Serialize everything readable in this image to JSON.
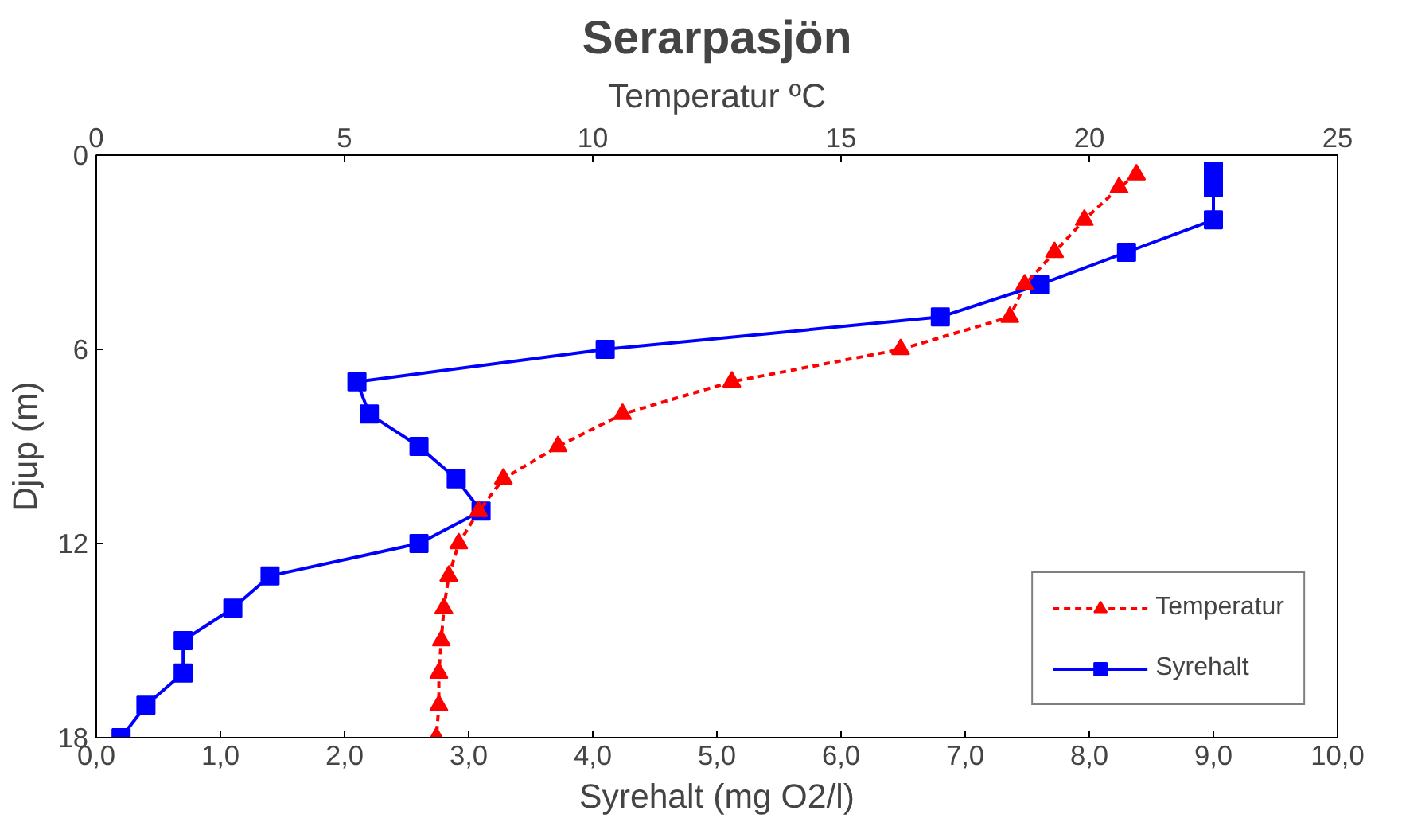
{
  "chart_data": {
    "type": "line",
    "title": "Serarpasjön",
    "xlabel": "Syrehalt (mg O2/l)",
    "x2label": "Temperatur ºC",
    "ylabel": "Djup (m)",
    "xlim": [
      0,
      10
    ],
    "xticks": [
      {
        "value": 0,
        "label": "0,0"
      },
      {
        "value": 1,
        "label": "1,0"
      },
      {
        "value": 2,
        "label": "2,0"
      },
      {
        "value": 3,
        "label": "3,0"
      },
      {
        "value": 4,
        "label": "4,0"
      },
      {
        "value": 5,
        "label": "5,0"
      },
      {
        "value": 6,
        "label": "6,0"
      },
      {
        "value": 7,
        "label": "7,0"
      },
      {
        "value": 8,
        "label": "8,0"
      },
      {
        "value": 9,
        "label": "9,0"
      },
      {
        "value": 10,
        "label": "10,0"
      }
    ],
    "x2lim": [
      0,
      25
    ],
    "x2ticks": [
      0,
      5,
      10,
      15,
      20,
      25
    ],
    "ylim": [
      18,
      0
    ],
    "yticks": [
      0,
      6,
      12,
      18
    ],
    "grid": false,
    "legend": "bottom right",
    "series": [
      {
        "name": "Temperatur",
        "color": "#ff0000",
        "axis": "x2",
        "marker": "triangle",
        "line_style": "dashed",
        "x": [
          20.95,
          20.6,
          19.9,
          19.3,
          18.7,
          18.4,
          16.2,
          12.8,
          10.6,
          9.3,
          8.2,
          7.7,
          7.3,
          7.1,
          7.0,
          6.95,
          6.9,
          6.9,
          6.85
        ],
        "values": [
          0.6,
          1,
          2,
          3,
          4,
          5,
          6,
          7,
          8,
          9,
          10,
          11,
          12,
          13,
          14,
          15,
          16,
          17,
          18
        ]
      },
      {
        "name": "Syrehalt",
        "color": "#0000ff",
        "marker": "square",
        "line_style": "solid",
        "x": [
          9.0,
          9.0,
          9.0,
          8.3,
          7.6,
          6.8,
          4.1,
          2.1,
          2.2,
          2.6,
          2.9,
          3.1,
          2.6,
          1.4,
          1.1,
          0.7,
          0.7,
          0.4,
          0.2
        ],
        "values": [
          0.5,
          1,
          2,
          3,
          4,
          5,
          6,
          7,
          8,
          9,
          10,
          11,
          12,
          13,
          14,
          15,
          16,
          17,
          18
        ]
      }
    ]
  }
}
